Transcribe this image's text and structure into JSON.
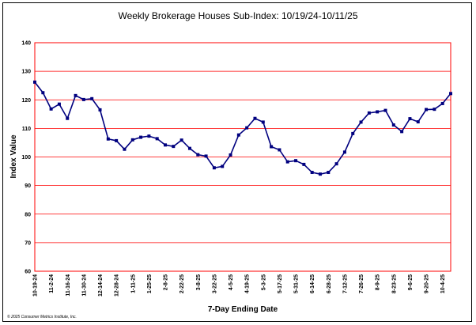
{
  "chart_data": {
    "type": "line",
    "title": "Weekly Brokerage Houses Sub-Index: 10/19/24-10/11/25",
    "xlabel": "7-Day Ending Date",
    "ylabel": "Index Value",
    "ylim": [
      60,
      140
    ],
    "yticks": [
      60,
      70,
      80,
      90,
      100,
      110,
      120,
      130,
      140
    ],
    "grid": true,
    "x_tick_labels": [
      "10-19-24",
      "11-2-24",
      "11-16-24",
      "11-30-24",
      "12-14-24",
      "12-28-24",
      "1-11-25",
      "1-25-25",
      "2-8-25",
      "2-22-25",
      "3-8-25",
      "3-22-25",
      "4-5-25",
      "4-19-25",
      "5-3-25",
      "5-17-25",
      "5-31-25",
      "6-14-25",
      "6-28-25",
      "7-12-25",
      "7-26-25",
      "8-9-25",
      "8-23-25",
      "9-6-25",
      "9-20-25",
      "10-4-25"
    ],
    "series": [
      {
        "color": "#00007f",
        "values": [
          126.2,
          122.5,
          116.8,
          118.5,
          113.5,
          121.5,
          120.1,
          120.4,
          116.5,
          106.3,
          105.7,
          102.7,
          106.0,
          106.9,
          107.3,
          106.4,
          104.2,
          103.7,
          105.9,
          103.0,
          100.8,
          100.3,
          96.2,
          96.7,
          100.7,
          107.7,
          110.2,
          113.5,
          112.2,
          103.6,
          102.5,
          98.3,
          98.7,
          97.4,
          94.6,
          94.0,
          94.6,
          97.6,
          101.7,
          108.2,
          112.2,
          115.4,
          115.8,
          116.3,
          111.2,
          108.9,
          113.4,
          112.3,
          116.6,
          116.7,
          118.7,
          122.2
        ]
      }
    ]
  },
  "copyright": "© 2025 Consumer Metrics Institute, Inc.",
  "colors": {
    "grid": "#ff0000",
    "line": "#00007f",
    "frame": "#000000"
  }
}
